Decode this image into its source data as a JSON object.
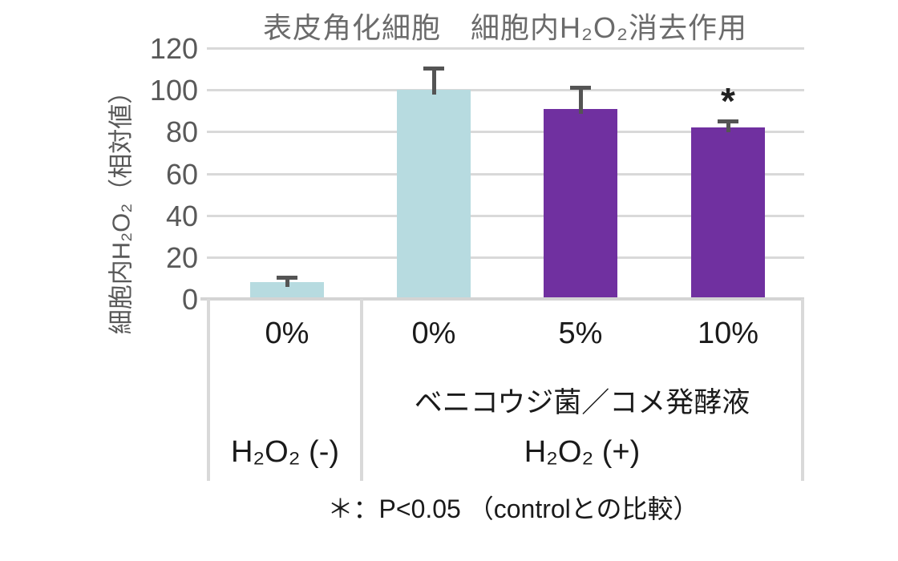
{
  "chart_data": {
    "type": "bar",
    "title": "表皮角化細胞　細胞内H₂O₂消去作用",
    "ylabel": "細胞内H₂O₂（相対値）",
    "ylim": [
      0,
      120
    ],
    "yticks": [
      0,
      20,
      40,
      60,
      80,
      100,
      120
    ],
    "grid": true,
    "legend_position": "none",
    "categories": [
      "0%",
      "0%",
      "5%",
      "10%"
    ],
    "series": [
      {
        "name": "細胞内H₂O₂（相対値）",
        "values": [
          8,
          100,
          91,
          82
        ],
        "errors_plus": [
          3,
          11,
          11,
          4
        ],
        "bar_colors": [
          "#B7DBE0",
          "#B7DBE0",
          "#7030A0",
          "#7030A0"
        ],
        "annotations": [
          "",
          "",
          "",
          "*"
        ]
      }
    ],
    "groups": [
      {
        "axis_label": "",
        "condition_label": "H₂O₂ (-)",
        "bar_indexes": [
          0
        ]
      },
      {
        "axis_label": "ベニコウジ菌／コメ発酵液",
        "condition_label": "H₂O₂ (+)",
        "bar_indexes": [
          1,
          2,
          3
        ]
      }
    ],
    "footnote": "＊：P<0.05 （controlとの比較）"
  },
  "colors": {
    "bar_teal": "#B7DBE0",
    "bar_purple": "#7030A0",
    "error_bar": "#545454",
    "gridline": "#D9D9D9",
    "axis_line": "#D4D4D4",
    "divider": "#D9D9D9",
    "title_text": "#6B6B6B",
    "tick_text": "#595959",
    "label_text": "#1A1A1A",
    "annotation_text": "#222222"
  }
}
